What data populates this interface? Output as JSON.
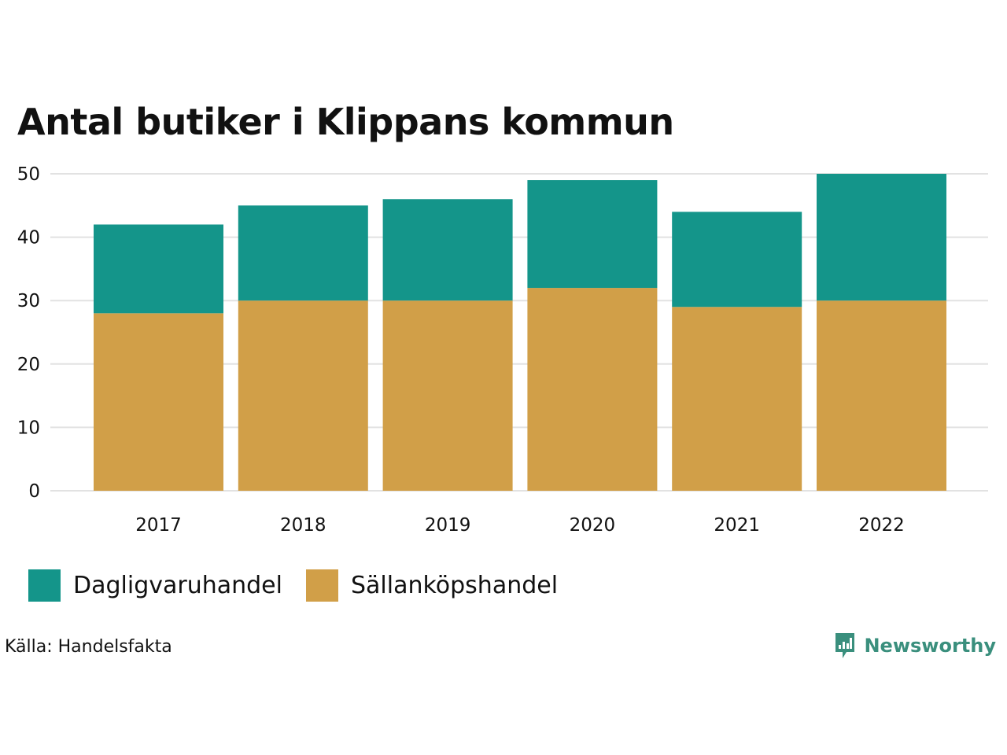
{
  "title": "Antal butiker i Klippans kommun",
  "colors": {
    "dagligvaruhandel": "#14958a",
    "sallankopshandel": "#d19f48",
    "gridline": "#e2e2e2",
    "brand": "#3a8f7d"
  },
  "chart_data": {
    "type": "bar",
    "stacked": true,
    "title": "Antal butiker i Klippans kommun",
    "xlabel": "",
    "ylabel": "",
    "ylim": [
      0,
      50
    ],
    "yticks": [
      0,
      10,
      20,
      30,
      40,
      50
    ],
    "categories": [
      "2017",
      "2018",
      "2019",
      "2020",
      "2021",
      "2022"
    ],
    "series": [
      {
        "name": "Sällanköpshandel",
        "key": "sallankopshandel",
        "values": [
          28,
          30,
          30,
          32,
          29,
          30
        ]
      },
      {
        "name": "Dagligvaruhandel",
        "key": "dagligvaruhandel",
        "values": [
          14,
          15,
          16,
          17,
          15,
          20
        ]
      }
    ],
    "grid": true,
    "legend_position": "bottom-left"
  },
  "legend": [
    {
      "label": "Dagligvaruhandel",
      "key": "dagligvaruhandel"
    },
    {
      "label": "Sällanköpshandel",
      "key": "sallankopshandel"
    }
  ],
  "source": "Källa: Handelsfakta",
  "brand": {
    "name": "Newsworthy",
    "icon": "bar-chart-bubble-icon"
  }
}
